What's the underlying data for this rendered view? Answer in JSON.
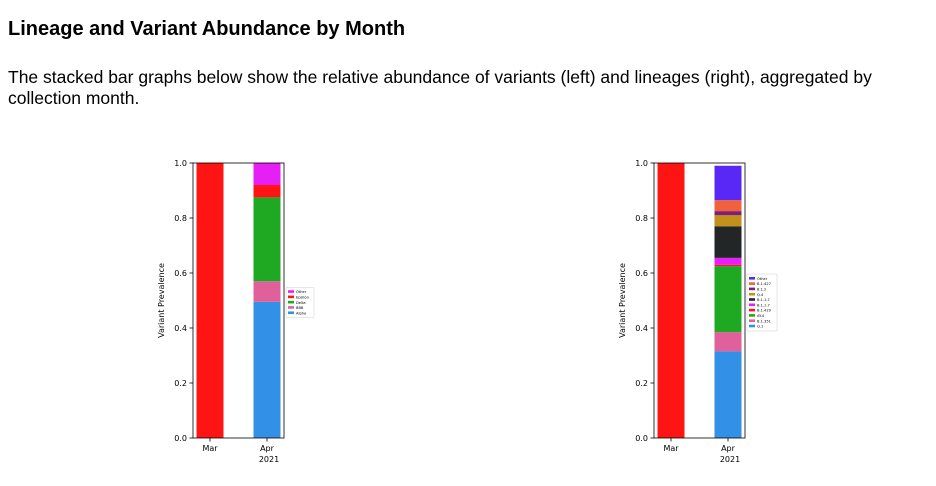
{
  "page": {
    "title": "Lineage and Variant Abundance by Month",
    "description": "The stacked bar graphs below show the relative abundance of variants (left) and lineages (right), aggregated by collection month."
  },
  "chart_data": [
    {
      "type": "bar",
      "stacked": true,
      "title": "",
      "xlabel": "",
      "ylabel": "Variant Prevalence",
      "categories": [
        "Mar",
        "Apr"
      ],
      "x_year_label": "2021",
      "ylim": [
        0,
        1.0
      ],
      "yticks": [
        "0.0",
        "0.2",
        "0.4",
        "0.6",
        "0.8",
        "1.0"
      ],
      "legend_position": "right",
      "series": [
        {
          "name": "Alpha",
          "color": "#3291e6",
          "values": [
            0,
            0.495
          ]
        },
        {
          "name": "BBB",
          "color": "#e0609b",
          "values": [
            0,
            0.075
          ]
        },
        {
          "name": "Delta",
          "color": "#1fa821",
          "values": [
            0,
            0.305
          ]
        },
        {
          "name": "Epsilon",
          "color": "#ff1414",
          "values": [
            1.0,
            0.045
          ]
        },
        {
          "name": "Other",
          "color": "#e51ff5",
          "values": [
            0,
            0.08
          ]
        }
      ]
    },
    {
      "type": "bar",
      "stacked": true,
      "title": "",
      "xlabel": "",
      "ylabel": "Variant Prevalence",
      "categories": [
        "Mar",
        "Apr"
      ],
      "x_year_label": "2021",
      "ylim": [
        0,
        1.0
      ],
      "yticks": [
        "0.0",
        "0.2",
        "0.4",
        "0.6",
        "0.8",
        "1.0"
      ],
      "legend_position": "right",
      "series": [
        {
          "name": "Q.1",
          "color": "#3291e6",
          "values": [
            0,
            0.315
          ]
        },
        {
          "name": "B.1.351",
          "color": "#e0609b",
          "values": [
            0,
            0.07
          ]
        },
        {
          "name": "AY.4",
          "color": "#1fa821",
          "values": [
            0,
            0.24
          ]
        },
        {
          "name": "B.1.429",
          "color": "#ff1414",
          "values": [
            1.0,
            0.005
          ]
        },
        {
          "name": "B.1.1.7",
          "color": "#e51ff5",
          "values": [
            0,
            0.025
          ]
        },
        {
          "name": "B.1.1.7",
          "color": "#232627",
          "values": [
            0,
            0.115
          ]
        },
        {
          "name": "Q.4",
          "color": "#c1911a",
          "values": [
            0,
            0.04
          ]
        },
        {
          "name": "B.1.2",
          "color": "#7e1f6f",
          "values": [
            0,
            0.015
          ]
        },
        {
          "name": "B.1.427",
          "color": "#f0613e",
          "values": [
            0,
            0.04
          ]
        },
        {
          "name": "Other",
          "color": "#5a28f5",
          "values": [
            0,
            0.125
          ]
        }
      ]
    }
  ]
}
